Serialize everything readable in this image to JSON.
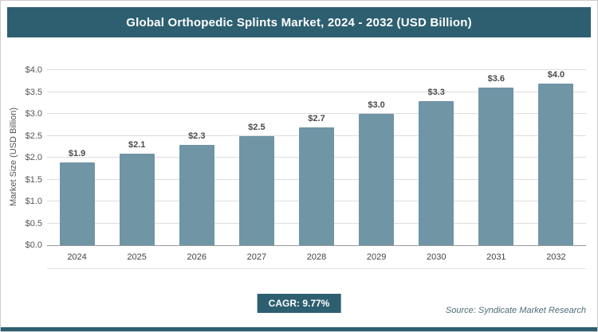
{
  "title": "Global Orthopedic Splints Market, 2024 - 2032 (USD Billion)",
  "cagr_label": "CAGR: 9.77%",
  "source": "Source: Syndicate Market Research",
  "colors": {
    "accent": "#2D5F71",
    "bar": "#7095A5",
    "grid": "#DDDDDD",
    "axis": "#9A9A9A"
  },
  "chart_data": {
    "type": "bar",
    "title": "Global Orthopedic Splints Market, 2024 - 2032 (USD Billion)",
    "categories": [
      "2024",
      "2025",
      "2026",
      "2027",
      "2028",
      "2029",
      "2030",
      "2031",
      "2032"
    ],
    "values": [
      1.9,
      2.1,
      2.3,
      2.5,
      2.7,
      3.0,
      3.3,
      3.6,
      4.0
    ],
    "data_labels": [
      "$1.9",
      "$2.1",
      "$2.3",
      "$2.5",
      "$2.7",
      "$3.0",
      "$3.3",
      "$3.6",
      "$4.0"
    ],
    "xlabel": "",
    "ylabel": "Market Size (USD Billion)",
    "ylim": [
      0,
      4.0
    ],
    "ytick_step": 0.5,
    "ytick_labels": [
      "$0.0",
      "$0.5",
      "$1.0",
      "$1.5",
      "$2.0",
      "$2.5",
      "$3.0",
      "$3.5",
      "$4.0"
    ],
    "grid": true,
    "legend": false,
    "annotations": [
      "CAGR: 9.77%"
    ]
  }
}
